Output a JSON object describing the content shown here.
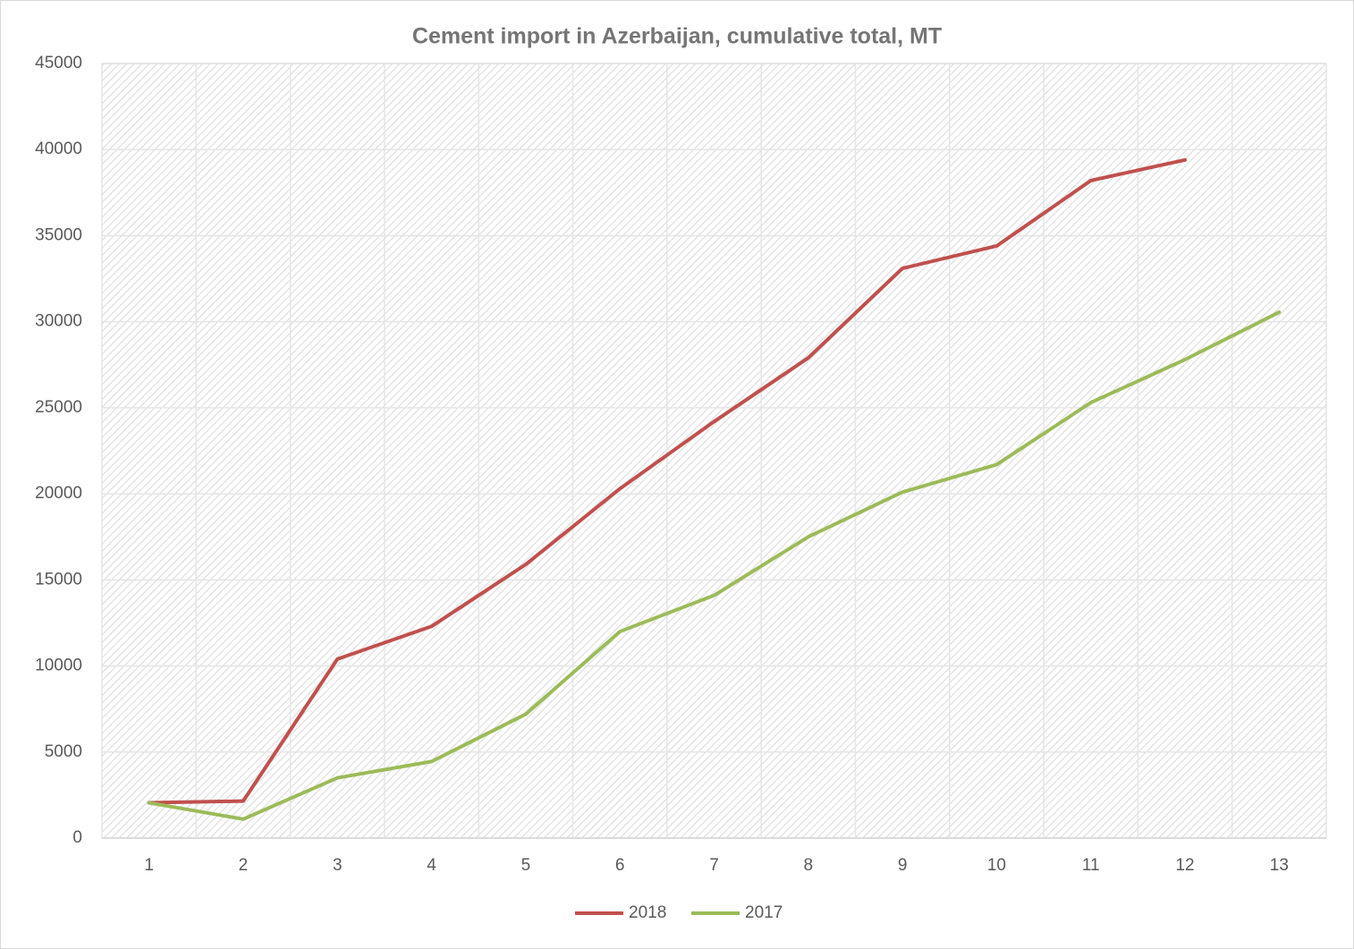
{
  "chart_data": {
    "type": "line",
    "title": "Cement import in Azerbaijan, cumulative total, MT",
    "categories": [
      "1",
      "2",
      "3",
      "4",
      "5",
      "6",
      "7",
      "8",
      "9",
      "10",
      "11",
      "12",
      "13"
    ],
    "series": [
      {
        "name": "2018",
        "color": "#c0504d",
        "values": [
          2050,
          2150,
          10400,
          12300,
          15900,
          20300,
          24200,
          27900,
          33100,
          34400,
          38200,
          39400,
          null
        ]
      },
      {
        "name": "2017",
        "color": "#9bbb59",
        "values": [
          2050,
          1100,
          3500,
          4450,
          7200,
          12000,
          14100,
          17500,
          20100,
          21700,
          25300,
          27800,
          30550
        ]
      }
    ],
    "ylim": [
      0,
      45000
    ],
    "yticks": [
      0,
      5000,
      10000,
      15000,
      20000,
      25000,
      30000,
      35000,
      40000,
      45000
    ],
    "grid": true,
    "legend": "bottom"
  }
}
